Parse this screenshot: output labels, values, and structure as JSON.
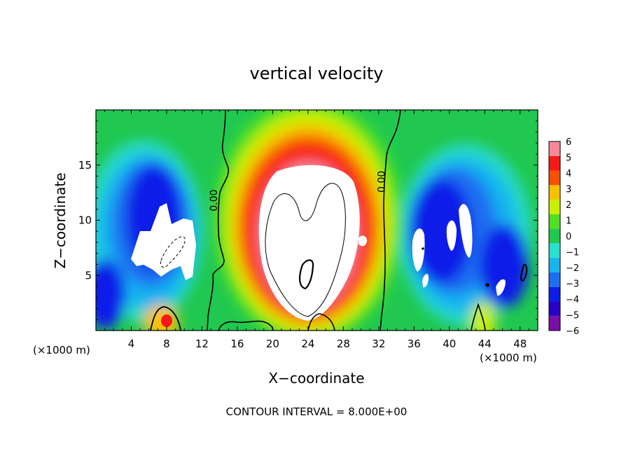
{
  "chart_data": {
    "type": "heatmap",
    "title": "vertical velocity",
    "xlabel": "X−coordinate",
    "ylabel": "Z−coordinate",
    "x_unit_left": "(×1000 m)",
    "x_unit_right": "(×1000 m)",
    "footer": "CONTOUR INTERVAL = 8.000E+00",
    "xlim": [
      0,
      50
    ],
    "ylim": [
      0,
      20
    ],
    "x_ticks": [
      4,
      8,
      12,
      16,
      20,
      24,
      28,
      32,
      36,
      40,
      44,
      48
    ],
    "x_tick_labels": [
      "4",
      "8",
      "12",
      "16",
      "20",
      "24",
      "28",
      "32",
      "36",
      "40",
      "44",
      "48"
    ],
    "y_ticks": [
      5,
      10,
      15
    ],
    "y_tick_labels": [
      "5",
      "10",
      "15"
    ],
    "colorbar": {
      "levels": [
        -6,
        -5,
        -4,
        -3,
        -2,
        -1,
        0,
        1,
        2,
        3,
        4,
        5,
        6
      ],
      "labels": [
        "−6",
        "−5",
        "−4",
        "−3",
        "−2",
        "−1",
        "0",
        "1",
        "2",
        "3",
        "4",
        "5",
        "6"
      ],
      "colors": [
        "#7a0ea8",
        "#2a00c8",
        "#0a1ee8",
        "#1e6ef0",
        "#18b4f0",
        "#28e0d0",
        "#20c850",
        "#50e020",
        "#c8f000",
        "#f8c000",
        "#f85000",
        "#f81818",
        "#f88898"
      ]
    },
    "contour_labels": [
      {
        "text": "0.00",
        "x": 13.7,
        "y": 11.8
      },
      {
        "text": "0.00",
        "x": 32.7,
        "y": 13.5
      }
    ],
    "features": [
      {
        "type": "updraft",
        "x": 23.5,
        "z": 9,
        "max": ">6"
      },
      {
        "type": "downdraft",
        "x": 8,
        "z": 8,
        "min": "<-6"
      },
      {
        "type": "downdraft",
        "x": 41,
        "z": 8,
        "min": "<-6"
      }
    ]
  }
}
